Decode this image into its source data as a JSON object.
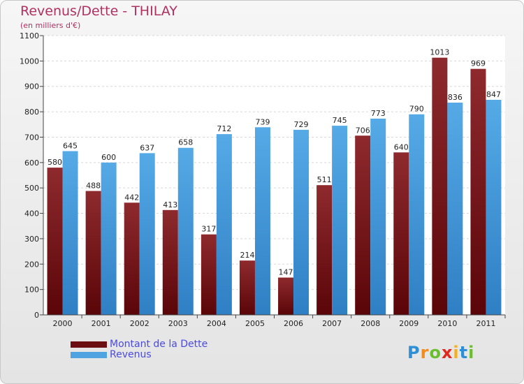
{
  "header": {
    "title": "Revenus/Dette - THILAY",
    "subtitle": "(en milliers d'€)"
  },
  "colors": {
    "dette": "#7a1418",
    "revenus": "#4ea3e0",
    "title": "#b03060",
    "legend_text": "#4a4ae0"
  },
  "legend": {
    "items": [
      {
        "label": "Montant de la Dette",
        "color": "#6b0f12"
      },
      {
        "label": "Revenus",
        "color": "#4ea3e0"
      }
    ]
  },
  "logo": {
    "letters": [
      "P",
      "r",
      "o",
      "x",
      "i",
      "t",
      "i"
    ],
    "colors": [
      "#2c8fd8",
      "#f28c1e",
      "#6abf2e",
      "#e0281c",
      "#f2b01e",
      "#2c8fd8",
      "#6abf2e"
    ]
  },
  "chart_data": {
    "type": "bar",
    "categories": [
      "2000",
      "2001",
      "2002",
      "2003",
      "2004",
      "2005",
      "2006",
      "2007",
      "2008",
      "2009",
      "2010",
      "2011"
    ],
    "series": [
      {
        "name": "Montant de la Dette",
        "values": [
          580,
          488,
          442,
          413,
          317,
          214,
          147,
          511,
          706,
          640,
          1013,
          969
        ]
      },
      {
        "name": "Revenus",
        "values": [
          645,
          600,
          637,
          658,
          712,
          739,
          729,
          745,
          773,
          790,
          836,
          847
        ]
      }
    ],
    "ylim": [
      0,
      1100
    ],
    "yticks": [
      0,
      100,
      200,
      300,
      400,
      500,
      600,
      700,
      800,
      900,
      1000,
      1100
    ],
    "grid": true,
    "legend_position": "bottom-left"
  }
}
